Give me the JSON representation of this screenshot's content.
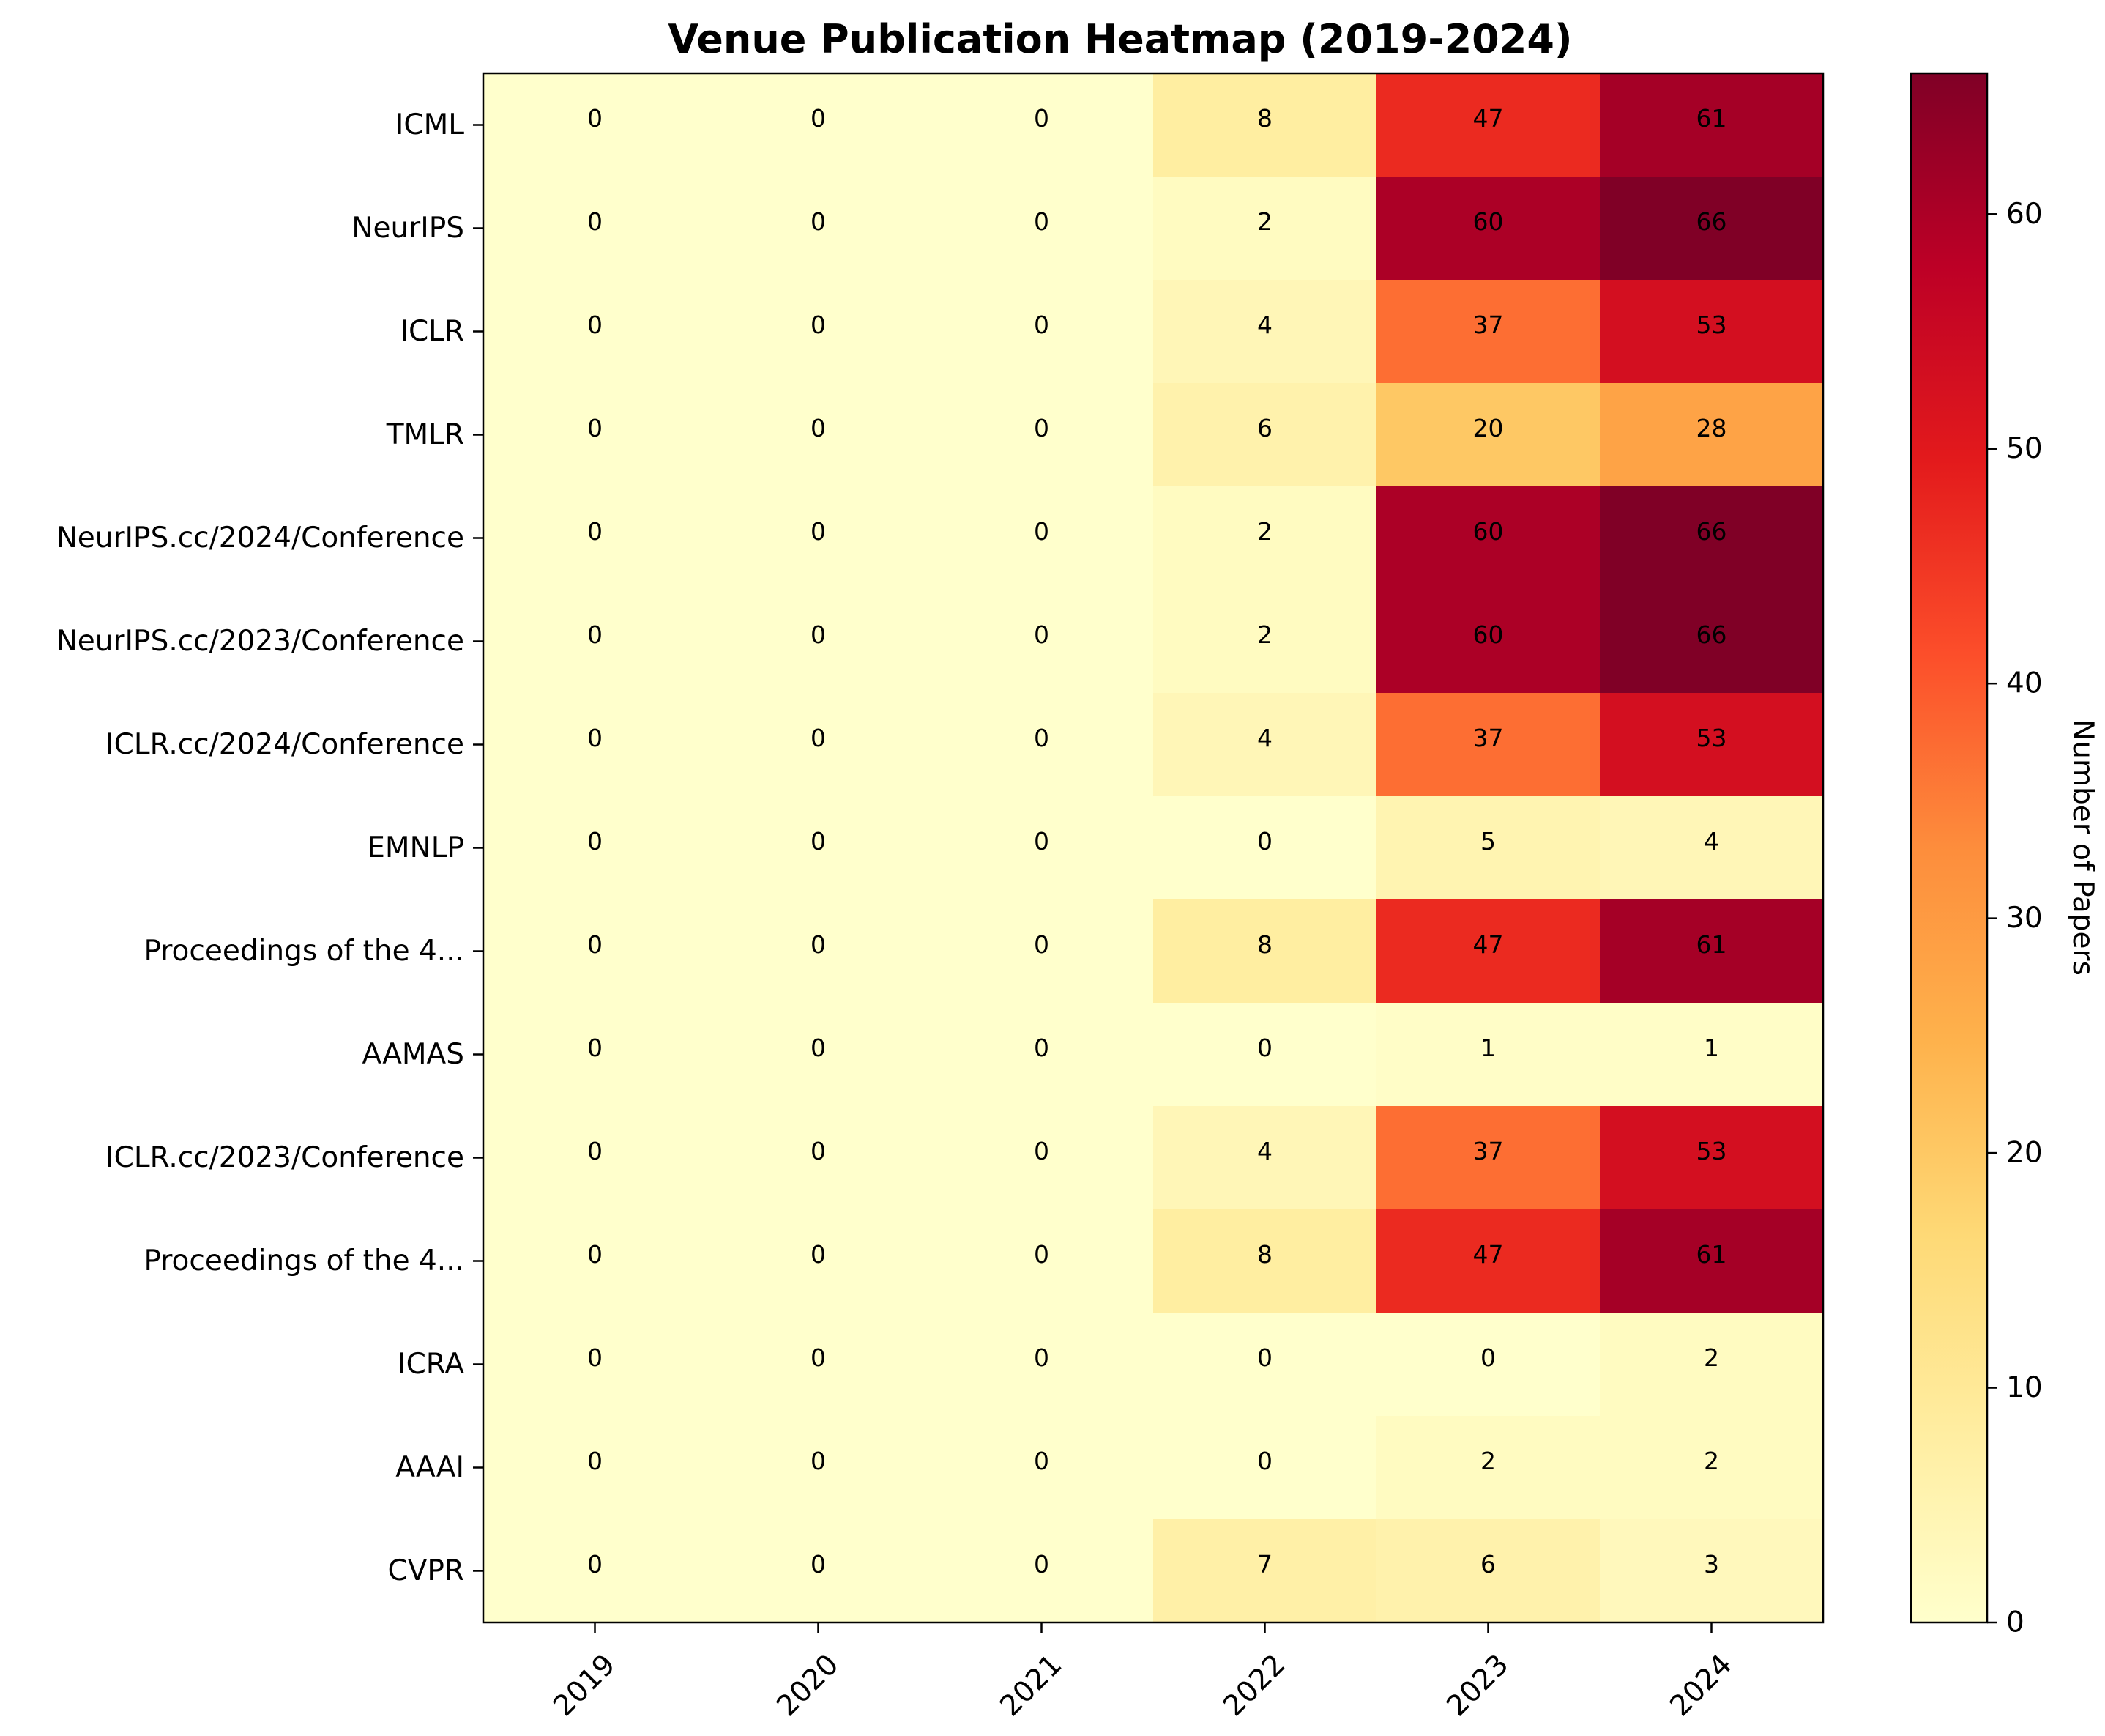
{
  "chart_data": {
    "type": "heatmap",
    "title": "Venue Publication Heatmap (2019-2024)",
    "x": [
      "2019",
      "2020",
      "2021",
      "2022",
      "2023",
      "2024"
    ],
    "y": [
      "ICML",
      "NeurIPS",
      "ICLR",
      "TMLR",
      "NeurIPS.cc/2024/Conference",
      "NeurIPS.cc/2023/Conference",
      "ICLR.cc/2024/Conference",
      "EMNLP",
      "Proceedings of the 4...",
      "AAMAS",
      "ICLR.cc/2023/Conference",
      "Proceedings of the 4...",
      "ICRA",
      "AAAI",
      "CVPR"
    ],
    "values": [
      [
        0,
        0,
        0,
        8,
        47,
        61
      ],
      [
        0,
        0,
        0,
        2,
        60,
        66
      ],
      [
        0,
        0,
        0,
        4,
        37,
        53
      ],
      [
        0,
        0,
        0,
        6,
        20,
        28
      ],
      [
        0,
        0,
        0,
        2,
        60,
        66
      ],
      [
        0,
        0,
        0,
        2,
        60,
        66
      ],
      [
        0,
        0,
        0,
        4,
        37,
        53
      ],
      [
        0,
        0,
        0,
        0,
        5,
        4
      ],
      [
        0,
        0,
        0,
        8,
        47,
        61
      ],
      [
        0,
        0,
        0,
        0,
        1,
        1
      ],
      [
        0,
        0,
        0,
        4,
        37,
        53
      ],
      [
        0,
        0,
        0,
        8,
        47,
        61
      ],
      [
        0,
        0,
        0,
        0,
        0,
        2
      ],
      [
        0,
        0,
        0,
        0,
        2,
        2
      ],
      [
        0,
        0,
        0,
        7,
        6,
        3
      ]
    ],
    "colormap": "YlOrRd",
    "vmin": 0,
    "vmax": 66,
    "colorbar": {
      "label": "Number of Papers",
      "ticks": [
        "0",
        "10",
        "20",
        "30",
        "40",
        "50",
        "60"
      ]
    }
  }
}
